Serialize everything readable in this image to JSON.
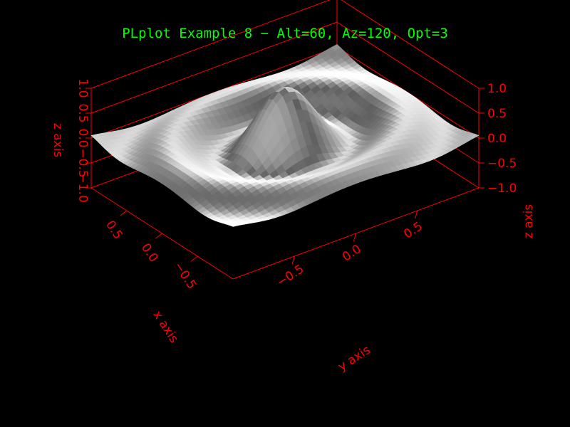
{
  "colors": {
    "background": "#000000",
    "title": "#00ff00",
    "box": "#ff0000",
    "surface_light": "#ffffff",
    "surface_dark": "#6e6e6e"
  },
  "chart_data": {
    "type": "surface3d",
    "title": "PLplot Example 8 − Alt=60, Az=120, Opt=3",
    "xlabel": "x axis",
    "ylabel": "y axis",
    "zlabel": "z axis",
    "view": {
      "altitude": 60,
      "azimuth": 120,
      "opt": 3
    },
    "xlim": [
      -1,
      1
    ],
    "ylim": [
      -1,
      1
    ],
    "zlim": [
      -1,
      1
    ],
    "x_ticks": [
      "0.5",
      "0.0",
      "−0.5"
    ],
    "y_ticks": [
      "0.5",
      "0.0",
      "−0.5"
    ],
    "z_ticks_left": [
      "1.0",
      "0.5",
      "0.0",
      "−0.5",
      "−1.0"
    ],
    "z_ticks_right": [
      "1.0",
      "0.5",
      "0.0",
      "−0.5",
      "−1.0"
    ],
    "function": "z = sin(3πr) / (3πr), r = √(x² + y²)",
    "shading": "gray, lit",
    "grid": false
  }
}
